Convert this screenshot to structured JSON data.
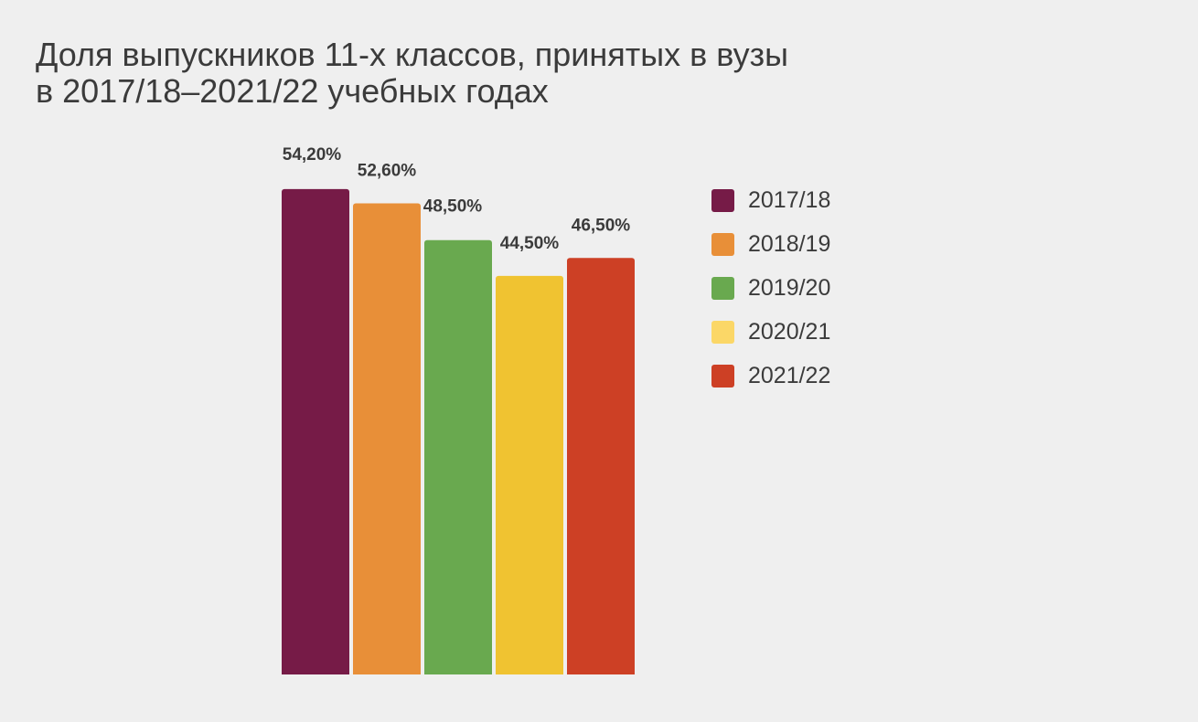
{
  "chart_data": {
    "type": "bar",
    "title_lines": [
      "Доля выпускников 11-х классов, принятых в вузы",
      "в 2017/18–2021/22 учебных годах"
    ],
    "xlabel": "",
    "ylabel": "",
    "ylim": [
      0,
      60
    ],
    "grid": false,
    "legend_position": "right",
    "categories": [
      "2017/18",
      "2018/19",
      "2019/20",
      "2020/21",
      "2021/22"
    ],
    "values": [
      54.2,
      52.6,
      48.5,
      44.5,
      46.5
    ],
    "value_labels": [
      "54,20%",
      "52,60%",
      "48,50%",
      "44,50%",
      "46,50%"
    ],
    "bar_colors": [
      "#761b47",
      "#e88f38",
      "#69a94f",
      "#f0c331",
      "#cd4025"
    ],
    "legend": [
      {
        "label": "2017/18",
        "color": "#761b47"
      },
      {
        "label": "2018/19",
        "color": "#e88f38"
      },
      {
        "label": "2019/20",
        "color": "#69a94f"
      },
      {
        "label": "2020/21",
        "color": "#fbd767"
      },
      {
        "label": "2021/22",
        "color": "#cd4025"
      }
    ]
  }
}
